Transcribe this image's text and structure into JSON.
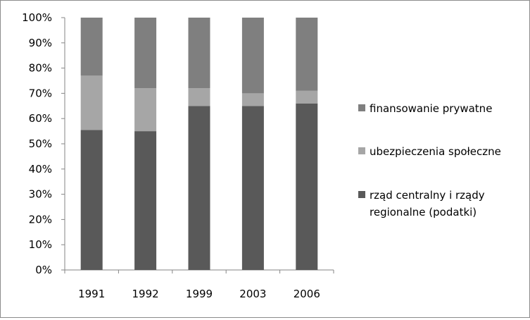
{
  "chart_data": {
    "type": "bar",
    "stacked": true,
    "normalized": true,
    "categories": [
      "1991",
      "1992",
      "1999",
      "2003",
      "2006"
    ],
    "series": [
      {
        "name": "rząd centralny i rządy regionalne (podatki)",
        "legend_lines": [
          "rząd centralny i rządy",
          "regionalne (podatki)"
        ],
        "color": "#595959",
        "values": [
          55.5,
          55,
          65,
          65,
          66
        ]
      },
      {
        "name": "ubezpieczenia społeczne",
        "legend_lines": [
          "ubezpieczenia społeczne"
        ],
        "color": "#a6a6a6",
        "values": [
          21.5,
          17,
          7,
          5,
          5
        ]
      },
      {
        "name": "finansowanie prywatne",
        "legend_lines": [
          "finansowanie prywatne"
        ],
        "color": "#7f7f7f",
        "values": [
          23,
          28,
          28,
          30,
          29
        ]
      }
    ],
    "title": "",
    "xlabel": "",
    "ylabel": "",
    "ylim": [
      0,
      100
    ],
    "y_ticks": [
      0,
      10,
      20,
      30,
      40,
      50,
      60,
      70,
      80,
      90,
      100
    ],
    "y_tick_suffix": "%",
    "grid": false,
    "legend_position": "right"
  }
}
